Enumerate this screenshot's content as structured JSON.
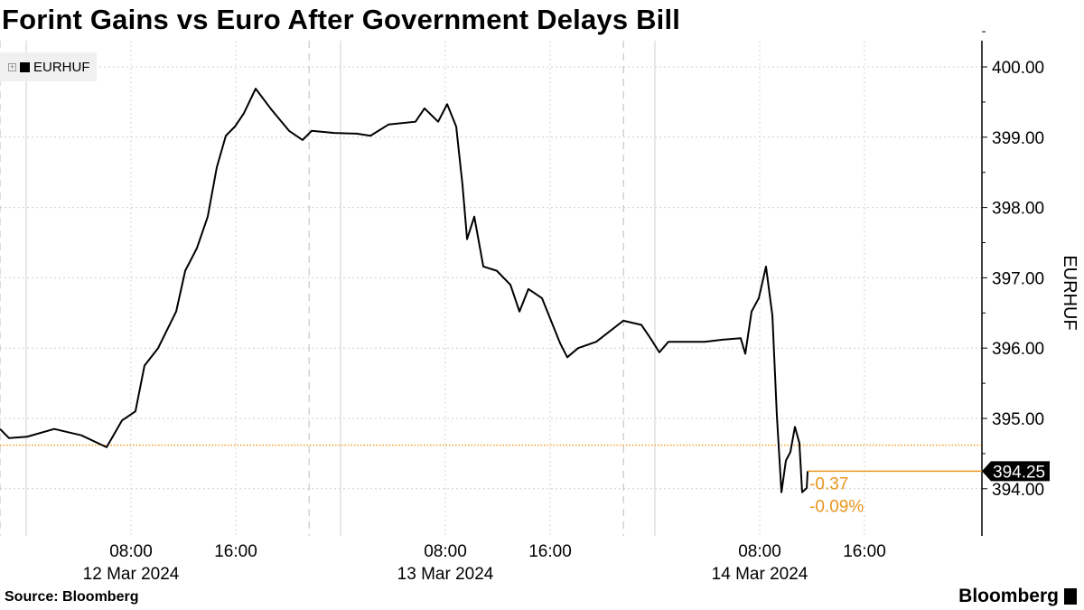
{
  "title": "Forint Gains vs Euro After Government Delays Bill",
  "source": "Source: Bloomberg",
  "brand": "Bloomberg",
  "chart_data": {
    "type": "line",
    "title": "Forint Gains vs Euro After Government Delays Bill",
    "ylabel": "EURHUF",
    "xlabel": "",
    "x_units": "hours since 12 Mar 2024 00:00",
    "ylim": [
      393.4,
      400.2
    ],
    "yticks": [
      394,
      395,
      396,
      397,
      398,
      399,
      400
    ],
    "ytick_labels": [
      "394.00",
      "395.00",
      "396.00",
      "397.00",
      "398.00",
      "399.00",
      "400.00"
    ],
    "xticks": [
      {
        "h": 8,
        "time": "08:00",
        "date": "12 Mar 2024"
      },
      {
        "h": 16,
        "time": "16:00",
        "date": ""
      },
      {
        "h": 32,
        "time": "08:00",
        "date": "13 Mar 2024"
      },
      {
        "h": 40,
        "time": "16:00",
        "date": ""
      },
      {
        "h": 56,
        "time": "08:00",
        "date": "14 Mar 2024"
      },
      {
        "h": 64,
        "time": "16:00",
        "date": ""
      }
    ],
    "legend": [
      "EURHUF"
    ],
    "legend_position": "top-left",
    "grid": true,
    "series": [
      {
        "name": "EURHUF",
        "color": "#000000",
        "x": [
          -2.0,
          -1.31,
          0.07,
          2.14,
          4.21,
          6.14,
          7.31,
          8.34,
          9.03,
          10.07,
          11.45,
          12.14,
          13.03,
          13.86,
          14.55,
          15.24,
          15.93,
          16.62,
          17.52,
          18.69,
          20.07,
          21.1,
          21.79,
          23.52,
          25.24,
          26.28,
          27.66,
          29.72,
          30.41,
          31.45,
          32.14,
          32.83,
          33.31,
          33.66,
          34.21,
          34.9,
          35.93,
          36.97,
          37.66,
          38.34,
          39.38,
          40.07,
          40.76,
          41.31,
          42.14,
          43.52,
          45.59,
          46.97,
          47.66,
          48.34,
          49.03,
          51.79,
          53.17,
          54.55,
          54.9,
          55.38,
          55.93,
          56.48,
          56.97,
          57.31,
          57.66,
          58.0,
          58.34,
          58.69,
          59.03,
          59.24,
          59.59,
          59.66
        ],
        "y": [
          394.85,
          394.72,
          394.74,
          394.85,
          394.76,
          394.59,
          394.97,
          395.1,
          395.75,
          396.0,
          396.52,
          397.1,
          397.42,
          397.87,
          398.57,
          399.02,
          399.15,
          399.34,
          399.69,
          399.4,
          399.09,
          398.96,
          399.09,
          399.06,
          399.05,
          399.02,
          399.18,
          399.22,
          399.41,
          399.22,
          399.47,
          399.15,
          398.32,
          397.55,
          397.87,
          397.16,
          397.1,
          396.9,
          396.52,
          396.84,
          396.71,
          396.39,
          396.07,
          395.87,
          396.0,
          396.09,
          396.39,
          396.33,
          396.14,
          395.94,
          396.09,
          396.09,
          396.12,
          396.14,
          395.92,
          396.52,
          396.71,
          397.16,
          396.46,
          395.04,
          393.95,
          394.4,
          394.52,
          394.88,
          394.65,
          393.95,
          394.01,
          394.25
        ]
      }
    ],
    "reference_line": {
      "value": 394.62,
      "color": "#f0a020",
      "style": "dotted"
    },
    "last_value": {
      "label": "394.25",
      "change": "-0.37",
      "change_pct": "-0.09%"
    },
    "accent_color": "#e8961e"
  }
}
